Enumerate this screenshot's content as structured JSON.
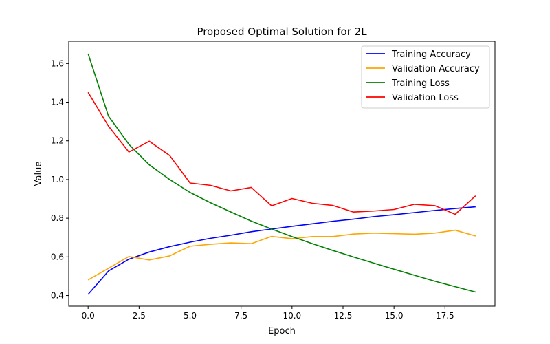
{
  "chart_data": {
    "type": "line",
    "title": "Proposed Optimal Solution for 2L",
    "xlabel": "Epoch",
    "ylabel": "Value",
    "xlim": [
      -0.95,
      19.95
    ],
    "ylim": [
      0.345,
      1.715
    ],
    "xticks": [
      0.0,
      2.5,
      5.0,
      7.5,
      10.0,
      12.5,
      15.0,
      17.5
    ],
    "xtick_labels": [
      "0.0",
      "2.5",
      "5.0",
      "7.5",
      "10.0",
      "12.5",
      "15.0",
      "17.5"
    ],
    "yticks": [
      0.4,
      0.6,
      0.8,
      1.0,
      1.2,
      1.4,
      1.6
    ],
    "ytick_labels": [
      "0.4",
      "0.6",
      "0.8",
      "1.0",
      "1.2",
      "1.4",
      "1.6"
    ],
    "grid": false,
    "legend_position": "top-right",
    "x": [
      0,
      1,
      2,
      3,
      4,
      5,
      6,
      7,
      8,
      9,
      10,
      11,
      12,
      13,
      14,
      15,
      16,
      17,
      18,
      19
    ],
    "series": [
      {
        "name": "Training Accuracy",
        "color": "#0000ff",
        "values": [
          0.406,
          0.527,
          0.588,
          0.625,
          0.653,
          0.676,
          0.696,
          0.712,
          0.73,
          0.744,
          0.758,
          0.771,
          0.784,
          0.795,
          0.808,
          0.818,
          0.829,
          0.84,
          0.85,
          0.859
        ]
      },
      {
        "name": "Validation Accuracy",
        "color": "#ffa500",
        "values": [
          0.481,
          0.541,
          0.602,
          0.584,
          0.605,
          0.655,
          0.665,
          0.672,
          0.668,
          0.706,
          0.694,
          0.705,
          0.705,
          0.718,
          0.723,
          0.72,
          0.717,
          0.723,
          0.738,
          0.708
        ]
      },
      {
        "name": "Training Loss",
        "color": "#008000",
        "values": [
          1.651,
          1.328,
          1.182,
          1.076,
          1.0,
          0.933,
          0.88,
          0.832,
          0.785,
          0.744,
          0.705,
          0.668,
          0.633,
          0.6,
          0.568,
          0.536,
          0.505,
          0.474,
          0.446,
          0.418
        ]
      },
      {
        "name": "Validation Loss",
        "color": "#ff0000",
        "values": [
          1.451,
          1.276,
          1.142,
          1.198,
          1.124,
          0.982,
          0.97,
          0.941,
          0.959,
          0.864,
          0.902,
          0.877,
          0.866,
          0.832,
          0.837,
          0.845,
          0.872,
          0.865,
          0.82,
          0.916
        ]
      }
    ]
  }
}
